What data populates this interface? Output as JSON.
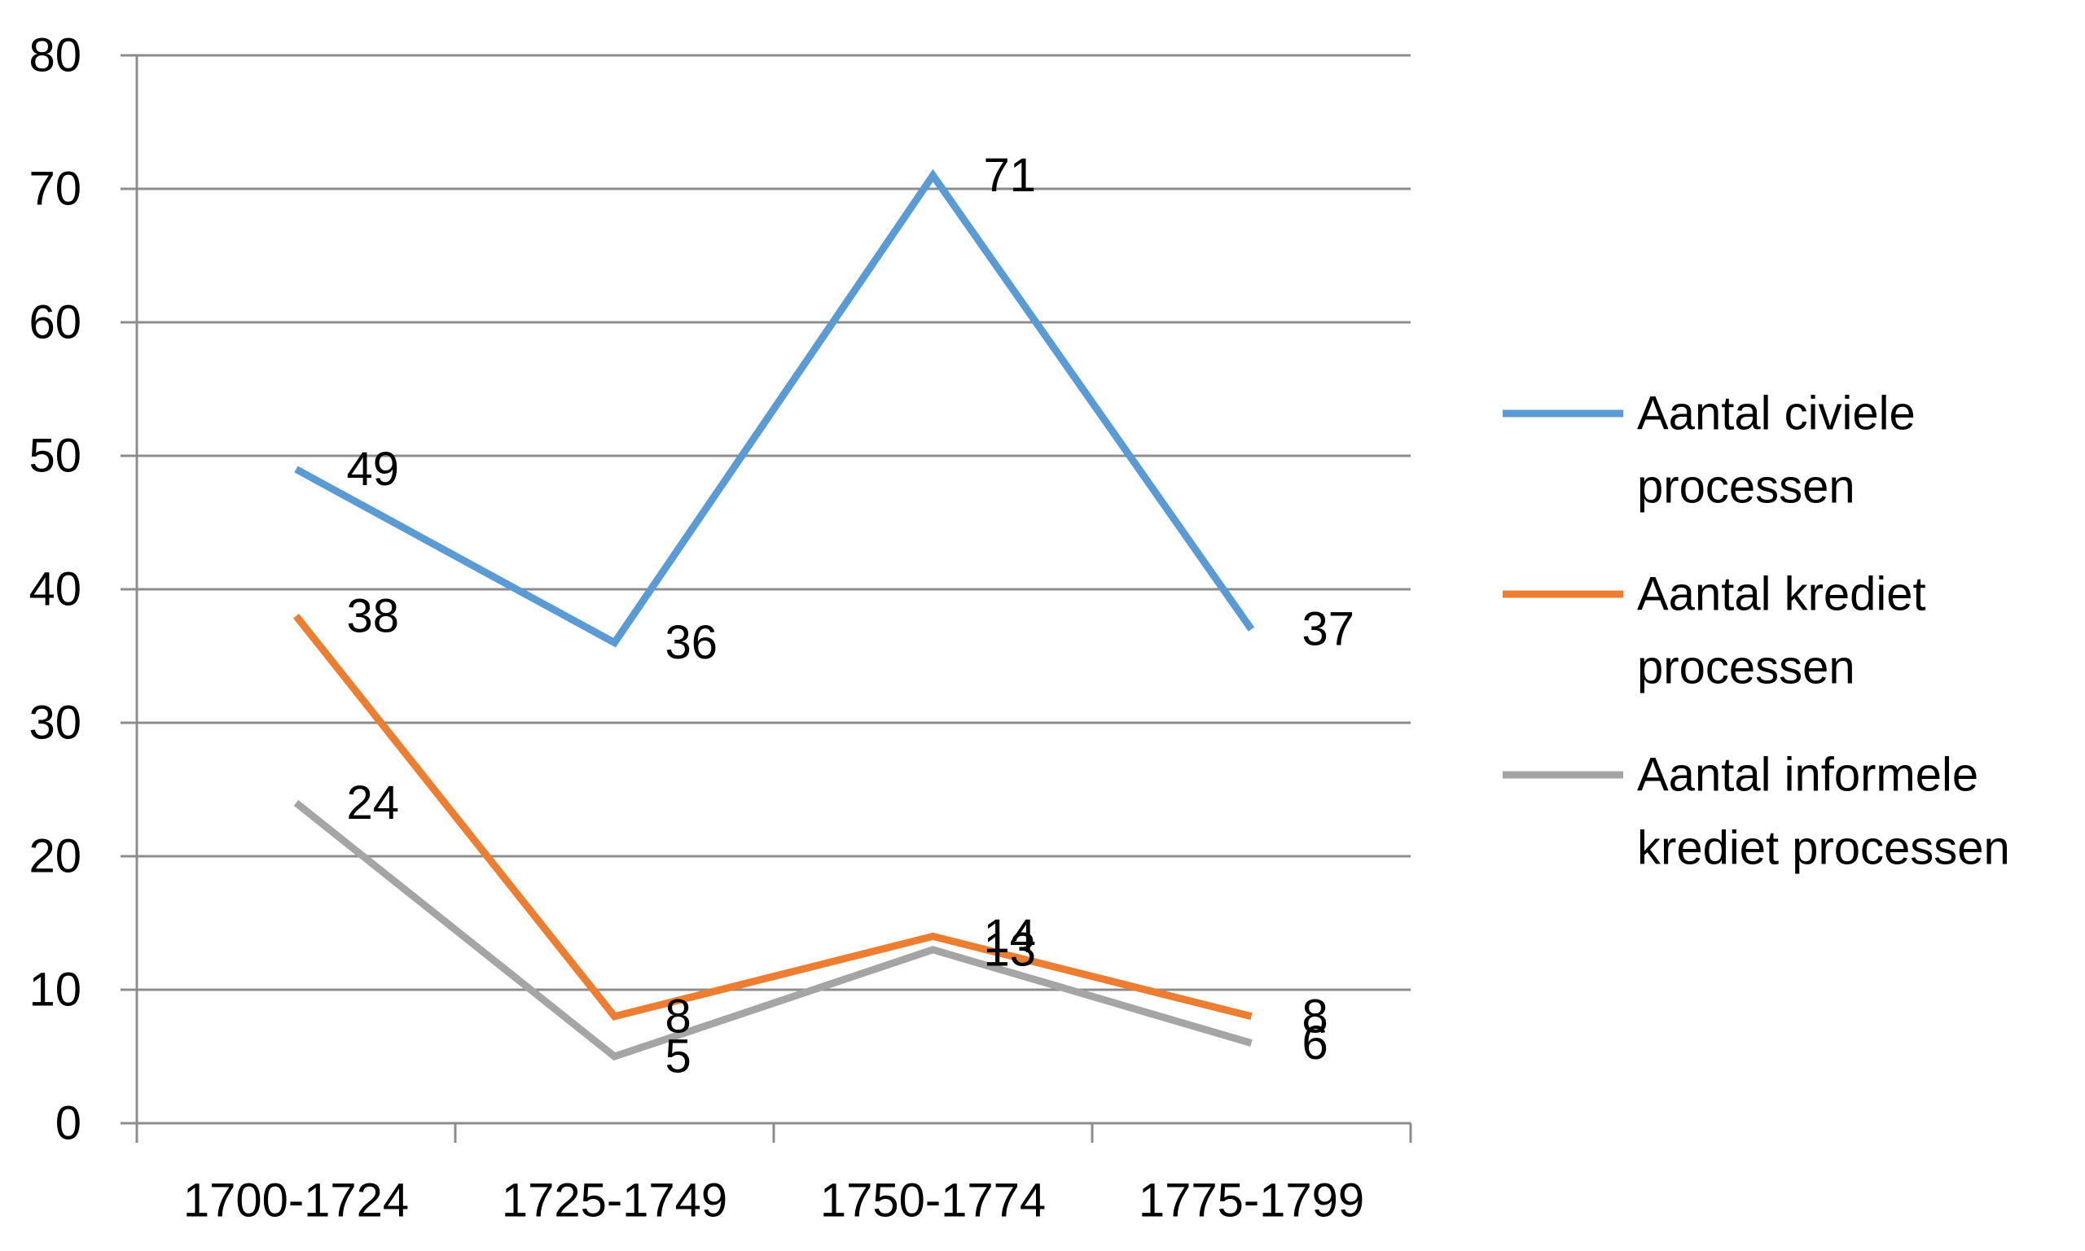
{
  "chart_data": {
    "type": "line",
    "categories": [
      "1700-1724",
      "1725-1749",
      "1750-1774",
      "1775-1799"
    ],
    "ylim": [
      0,
      80
    ],
    "yticks": [
      0,
      10,
      20,
      30,
      40,
      50,
      60,
      70,
      80
    ],
    "grid": true,
    "legend_position": "right",
    "series": [
      {
        "name": "Aantal civiele processen",
        "legend_lines": [
          "Aantal civiele",
          "processen"
        ],
        "color": "#5B9BD5",
        "values": [
          49,
          36,
          71,
          37
        ]
      },
      {
        "name": "Aantal krediet processen",
        "legend_lines": [
          "Aantal krediet",
          "processen"
        ],
        "color": "#ED7D31",
        "values": [
          38,
          8,
          14,
          8
        ]
      },
      {
        "name": "Aantal informele krediet processen",
        "legend_lines": [
          "Aantal informele",
          "krediet processen"
        ],
        "color": "#A5A5A5",
        "values": [
          24,
          5,
          13,
          6
        ]
      }
    ]
  }
}
